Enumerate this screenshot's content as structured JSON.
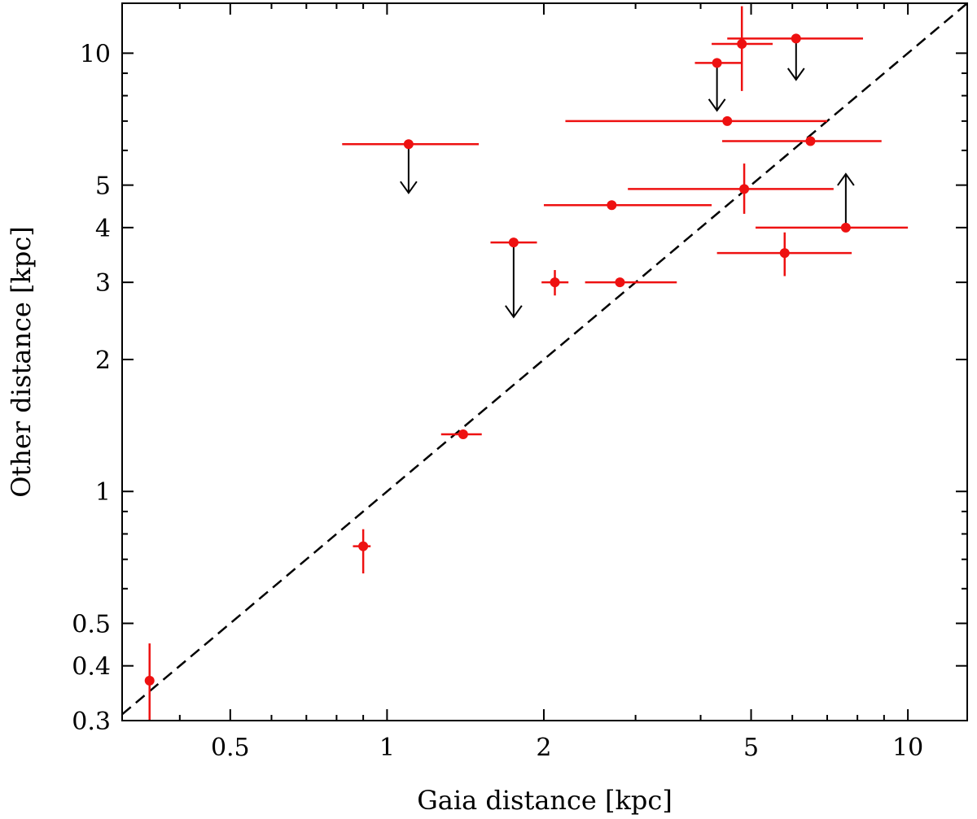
{
  "chart_data": {
    "type": "scatter",
    "title": "",
    "xlabel": "Gaia distance [kpc]",
    "ylabel": "Other distance [kpc]",
    "xscale": "log",
    "yscale": "log",
    "xlim": [
      0.31,
      13.0
    ],
    "ylim": [
      0.3,
      13.0
    ],
    "grid": false,
    "legend": "none",
    "colors": {
      "points": "#ee1111",
      "arrows": "#000000",
      "axes": "#000000",
      "line": "#000000"
    },
    "x_ticks": [
      {
        "value": 0.5,
        "label": "0.5"
      },
      {
        "value": 1,
        "label": "1"
      },
      {
        "value": 2,
        "label": "2"
      },
      {
        "value": 5,
        "label": "5"
      },
      {
        "value": 10,
        "label": "10"
      }
    ],
    "x_minor_ticks": [
      0.4,
      0.6,
      0.7,
      0.8,
      0.9,
      3,
      4,
      6,
      7,
      8,
      9
    ],
    "y_ticks": [
      {
        "value": 0.3,
        "label": "0.3"
      },
      {
        "value": 0.4,
        "label": "0.4"
      },
      {
        "value": 0.5,
        "label": "0.5"
      },
      {
        "value": 1,
        "label": "1"
      },
      {
        "value": 2,
        "label": "2"
      },
      {
        "value": 3,
        "label": "3"
      },
      {
        "value": 4,
        "label": "4"
      },
      {
        "value": 5,
        "label": "5"
      },
      {
        "value": 10,
        "label": "10"
      }
    ],
    "y_minor_ticks": [
      0.6,
      0.7,
      0.8,
      0.9,
      6,
      7,
      8,
      9
    ],
    "reference_line": {
      "label": "y = x",
      "style": "dashed",
      "x_range": [
        0.31,
        13.0
      ]
    },
    "points": [
      {
        "x": 0.35,
        "y": 0.37,
        "xerr": [
          0.35,
          0.35
        ],
        "yerr": [
          0.3,
          0.45
        ],
        "limit": "none"
      },
      {
        "x": 0.9,
        "y": 0.75,
        "xerr": [
          0.86,
          0.93
        ],
        "yerr": [
          0.65,
          0.82
        ],
        "limit": "none"
      },
      {
        "x": 1.4,
        "y": 1.35,
        "xerr": [
          1.27,
          1.52
        ],
        "yerr": [
          1.33,
          1.37
        ],
        "limit": "none"
      },
      {
        "x": 1.1,
        "y": 6.2,
        "xerr": [
          0.82,
          1.5
        ],
        "yerr": [
          6.2,
          6.2
        ],
        "limit": "upper",
        "arrow_to": 4.8
      },
      {
        "x": 1.75,
        "y": 3.7,
        "xerr": [
          1.58,
          1.94
        ],
        "yerr": [
          3.7,
          3.7
        ],
        "limit": "upper",
        "arrow_to": 2.5
      },
      {
        "x": 2.1,
        "y": 3.0,
        "xerr": [
          1.98,
          2.23
        ],
        "yerr": [
          2.8,
          3.2
        ],
        "limit": "none"
      },
      {
        "x": 2.8,
        "y": 3.0,
        "xerr": [
          2.4,
          3.6
        ],
        "yerr": [
          3.0,
          3.0
        ],
        "limit": "none"
      },
      {
        "x": 2.7,
        "y": 4.5,
        "xerr": [
          2.0,
          4.2
        ],
        "yerr": [
          4.5,
          4.5
        ],
        "limit": "none"
      },
      {
        "x": 4.85,
        "y": 4.9,
        "xerr": [
          2.9,
          7.2
        ],
        "yerr": [
          4.3,
          5.6
        ],
        "limit": "none"
      },
      {
        "x": 4.5,
        "y": 7.0,
        "xerr": [
          2.2,
          7.0
        ],
        "yerr": [
          7.0,
          7.0
        ],
        "limit": "none"
      },
      {
        "x": 4.3,
        "y": 9.5,
        "xerr": [
          3.9,
          4.8
        ],
        "yerr": [
          9.5,
          9.5
        ],
        "limit": "upper",
        "arrow_to": 7.4
      },
      {
        "x": 4.8,
        "y": 10.5,
        "xerr": [
          4.2,
          5.5
        ],
        "yerr": [
          8.2,
          12.8
        ],
        "limit": "none"
      },
      {
        "x": 6.1,
        "y": 10.8,
        "xerr": [
          4.5,
          8.2
        ],
        "yerr": [
          10.8,
          10.8
        ],
        "limit": "upper",
        "arrow_to": 8.7
      },
      {
        "x": 6.5,
        "y": 6.3,
        "xerr": [
          4.4,
          8.9
        ],
        "yerr": [
          6.3,
          6.3
        ],
        "limit": "none"
      },
      {
        "x": 5.8,
        "y": 3.5,
        "xerr": [
          4.3,
          7.8
        ],
        "yerr": [
          3.1,
          3.9
        ],
        "limit": "none"
      },
      {
        "x": 7.6,
        "y": 4.0,
        "xerr": [
          5.1,
          10.0
        ],
        "yerr": [
          4.0,
          4.0
        ],
        "limit": "lower",
        "arrow_to": 5.3
      }
    ]
  }
}
